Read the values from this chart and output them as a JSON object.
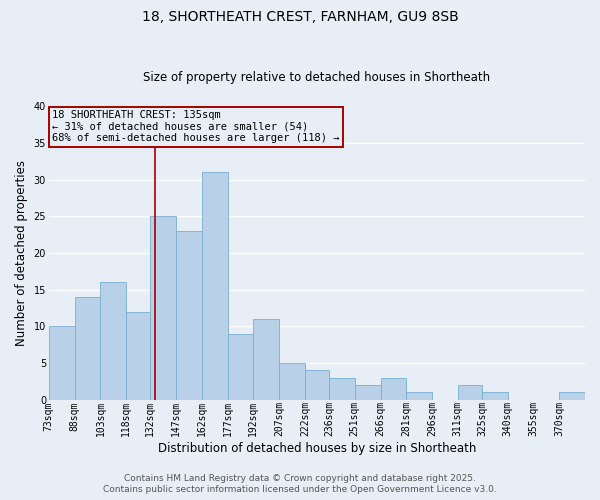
{
  "title": "18, SHORTHEATH CREST, FARNHAM, GU9 8SB",
  "subtitle": "Size of property relative to detached houses in Shortheath",
  "xlabel": "Distribution of detached houses by size in Shortheath",
  "ylabel": "Number of detached properties",
  "footer_line1": "Contains HM Land Registry data © Crown copyright and database right 2025.",
  "footer_line2": "Contains public sector information licensed under the Open Government Licence v3.0.",
  "bin_labels": [
    "73sqm",
    "88sqm",
    "103sqm",
    "118sqm",
    "132sqm",
    "147sqm",
    "162sqm",
    "177sqm",
    "192sqm",
    "207sqm",
    "222sqm",
    "236sqm",
    "251sqm",
    "266sqm",
    "281sqm",
    "296sqm",
    "311sqm",
    "325sqm",
    "340sqm",
    "355sqm",
    "370sqm"
  ],
  "bar_values": [
    10,
    14,
    16,
    12,
    25,
    23,
    31,
    9,
    11,
    5,
    4,
    3,
    2,
    3,
    1,
    0,
    2,
    1,
    0,
    0,
    1
  ],
  "bin_edges": [
    73,
    88,
    103,
    118,
    132,
    147,
    162,
    177,
    192,
    207,
    222,
    236,
    251,
    266,
    281,
    296,
    311,
    325,
    340,
    355,
    370,
    385
  ],
  "bar_color": "#b8d0e8",
  "bar_edgecolor": "#7aaed0",
  "property_line_x": 135,
  "property_line_color": "#aa0000",
  "annotation_line1": "18 SHORTHEATH CREST: 135sqm",
  "annotation_line2": "← 31% of detached houses are smaller (54)",
  "annotation_line3": "68% of semi-detached houses are larger (118) →",
  "annotation_box_color": "#aa0000",
  "ylim": [
    0,
    40
  ],
  "yticks": [
    0,
    5,
    10,
    15,
    20,
    25,
    30,
    35,
    40
  ],
  "background_color": "#e8eef5",
  "grid_color": "#ffffff",
  "title_fontsize": 10,
  "subtitle_fontsize": 8.5,
  "axis_label_fontsize": 8.5,
  "tick_fontsize": 7,
  "annotation_fontsize": 7.5,
  "footer_fontsize": 6.5
}
